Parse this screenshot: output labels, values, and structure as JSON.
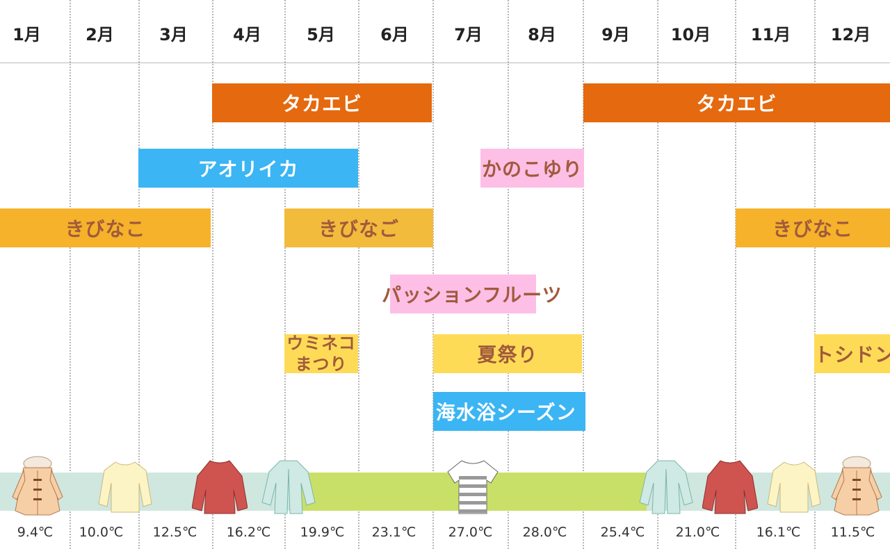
{
  "months": [
    "1月",
    "2月",
    "3月",
    "4月",
    "5月",
    "6月",
    "7月",
    "8月",
    "9月",
    "10月",
    "11月",
    "12月"
  ],
  "events": {
    "takaebi_1": "タカエビ",
    "takaebi_2": "タカエビ",
    "aoriika": "アオリイカ",
    "kanokoyuri": "かのこゆり",
    "kibinago_1": "きびなこ",
    "kibinago_2": "きびなご",
    "kibinago_3": "きびなこ",
    "passion_fruit": "パッションフルーツ",
    "umineko_line1": "ウミネコ",
    "umineko_line2": "まつり",
    "natsumatsuri": "夏祭り",
    "kaisuiyoku": "海水浴シーズン",
    "toshidon": "トシドン"
  },
  "temperatures": [
    "9.4℃",
    "10.0℃",
    "12.5℃",
    "16.2℃",
    "19.9℃",
    "23.1℃",
    "27.0℃",
    "28.0℃",
    "25.4℃",
    "21.0℃",
    "16.1℃",
    "11.5℃"
  ],
  "clothing": [
    "duffle-coat",
    "sweater",
    "jacket",
    "cardigan",
    "t-shirt",
    "cardigan",
    "jacket",
    "sweater",
    "duffle-coat"
  ],
  "colors": {
    "takaebi": "#e5690e",
    "aoriika": "#3bb5f3",
    "kanokoyuri": "#fdbfe6",
    "kibinago": "#f5b22a",
    "passion_fruit": "#fdbfe6",
    "festival": "#fddb57",
    "kaisuiyoku": "#3bb5f3",
    "band_cool": "#cfe7df",
    "band_warm": "#c9e068"
  }
}
